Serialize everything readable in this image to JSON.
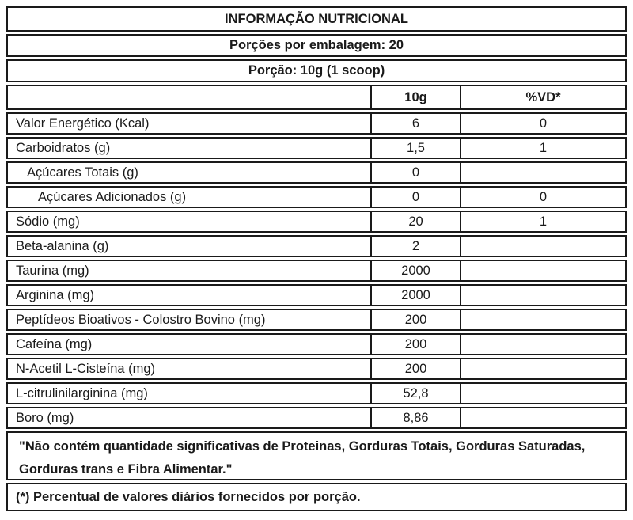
{
  "colors": {
    "ink": "#1a1a1a",
    "background": "#ffffff"
  },
  "table": {
    "title": "INFORMAÇÃO NUTRICIONAL",
    "servings_per_package": "Porções por embalagem: 20",
    "serving_size": "Porção: 10g (1 scoop)",
    "columns": {
      "nutrient": "",
      "amount": "10g",
      "daily_value": "%VD*"
    },
    "rows": [
      {
        "label": "Valor Energético (Kcal)",
        "amount": "6",
        "dv": "0"
      },
      {
        "label": "Carboidratos (g)",
        "amount": "1,5",
        "dv": "1"
      },
      {
        "label": "Açúcares Totais (g)",
        "amount": "0",
        "dv": ""
      },
      {
        "label": "Açúcares Adicionados (g)",
        "amount": "0",
        "dv": "0"
      },
      {
        "label": "Sódio (mg)",
        "amount": "20",
        "dv": "1"
      },
      {
        "label": "Beta-alanina (g)",
        "amount": "2",
        "dv": ""
      },
      {
        "label": "Taurina (mg)",
        "amount": "2000",
        "dv": ""
      },
      {
        "label": "Arginina (mg)",
        "amount": "2000",
        "dv": ""
      },
      {
        "label": "Peptídeos Bioativos  - Colostro Bovino (mg)",
        "amount": "200",
        "dv": ""
      },
      {
        "label": "Cafeína (mg)",
        "amount": "200",
        "dv": ""
      },
      {
        "label": "N-Acetil L-Cisteína (mg)",
        "amount": "200",
        "dv": ""
      },
      {
        "label": "L-citrulinilarginina (mg)",
        "amount": "52,8",
        "dv": ""
      },
      {
        "label": "Boro (mg)",
        "amount": "8,86",
        "dv": ""
      }
    ],
    "note": "\"Não contém quantidade significativas de Proteinas, Gorduras Totais, Gorduras Saturadas, Gorduras trans e Fibra Alimentar.\"",
    "footnote": "(*) Percentual de valores diários fornecidos por porção."
  }
}
